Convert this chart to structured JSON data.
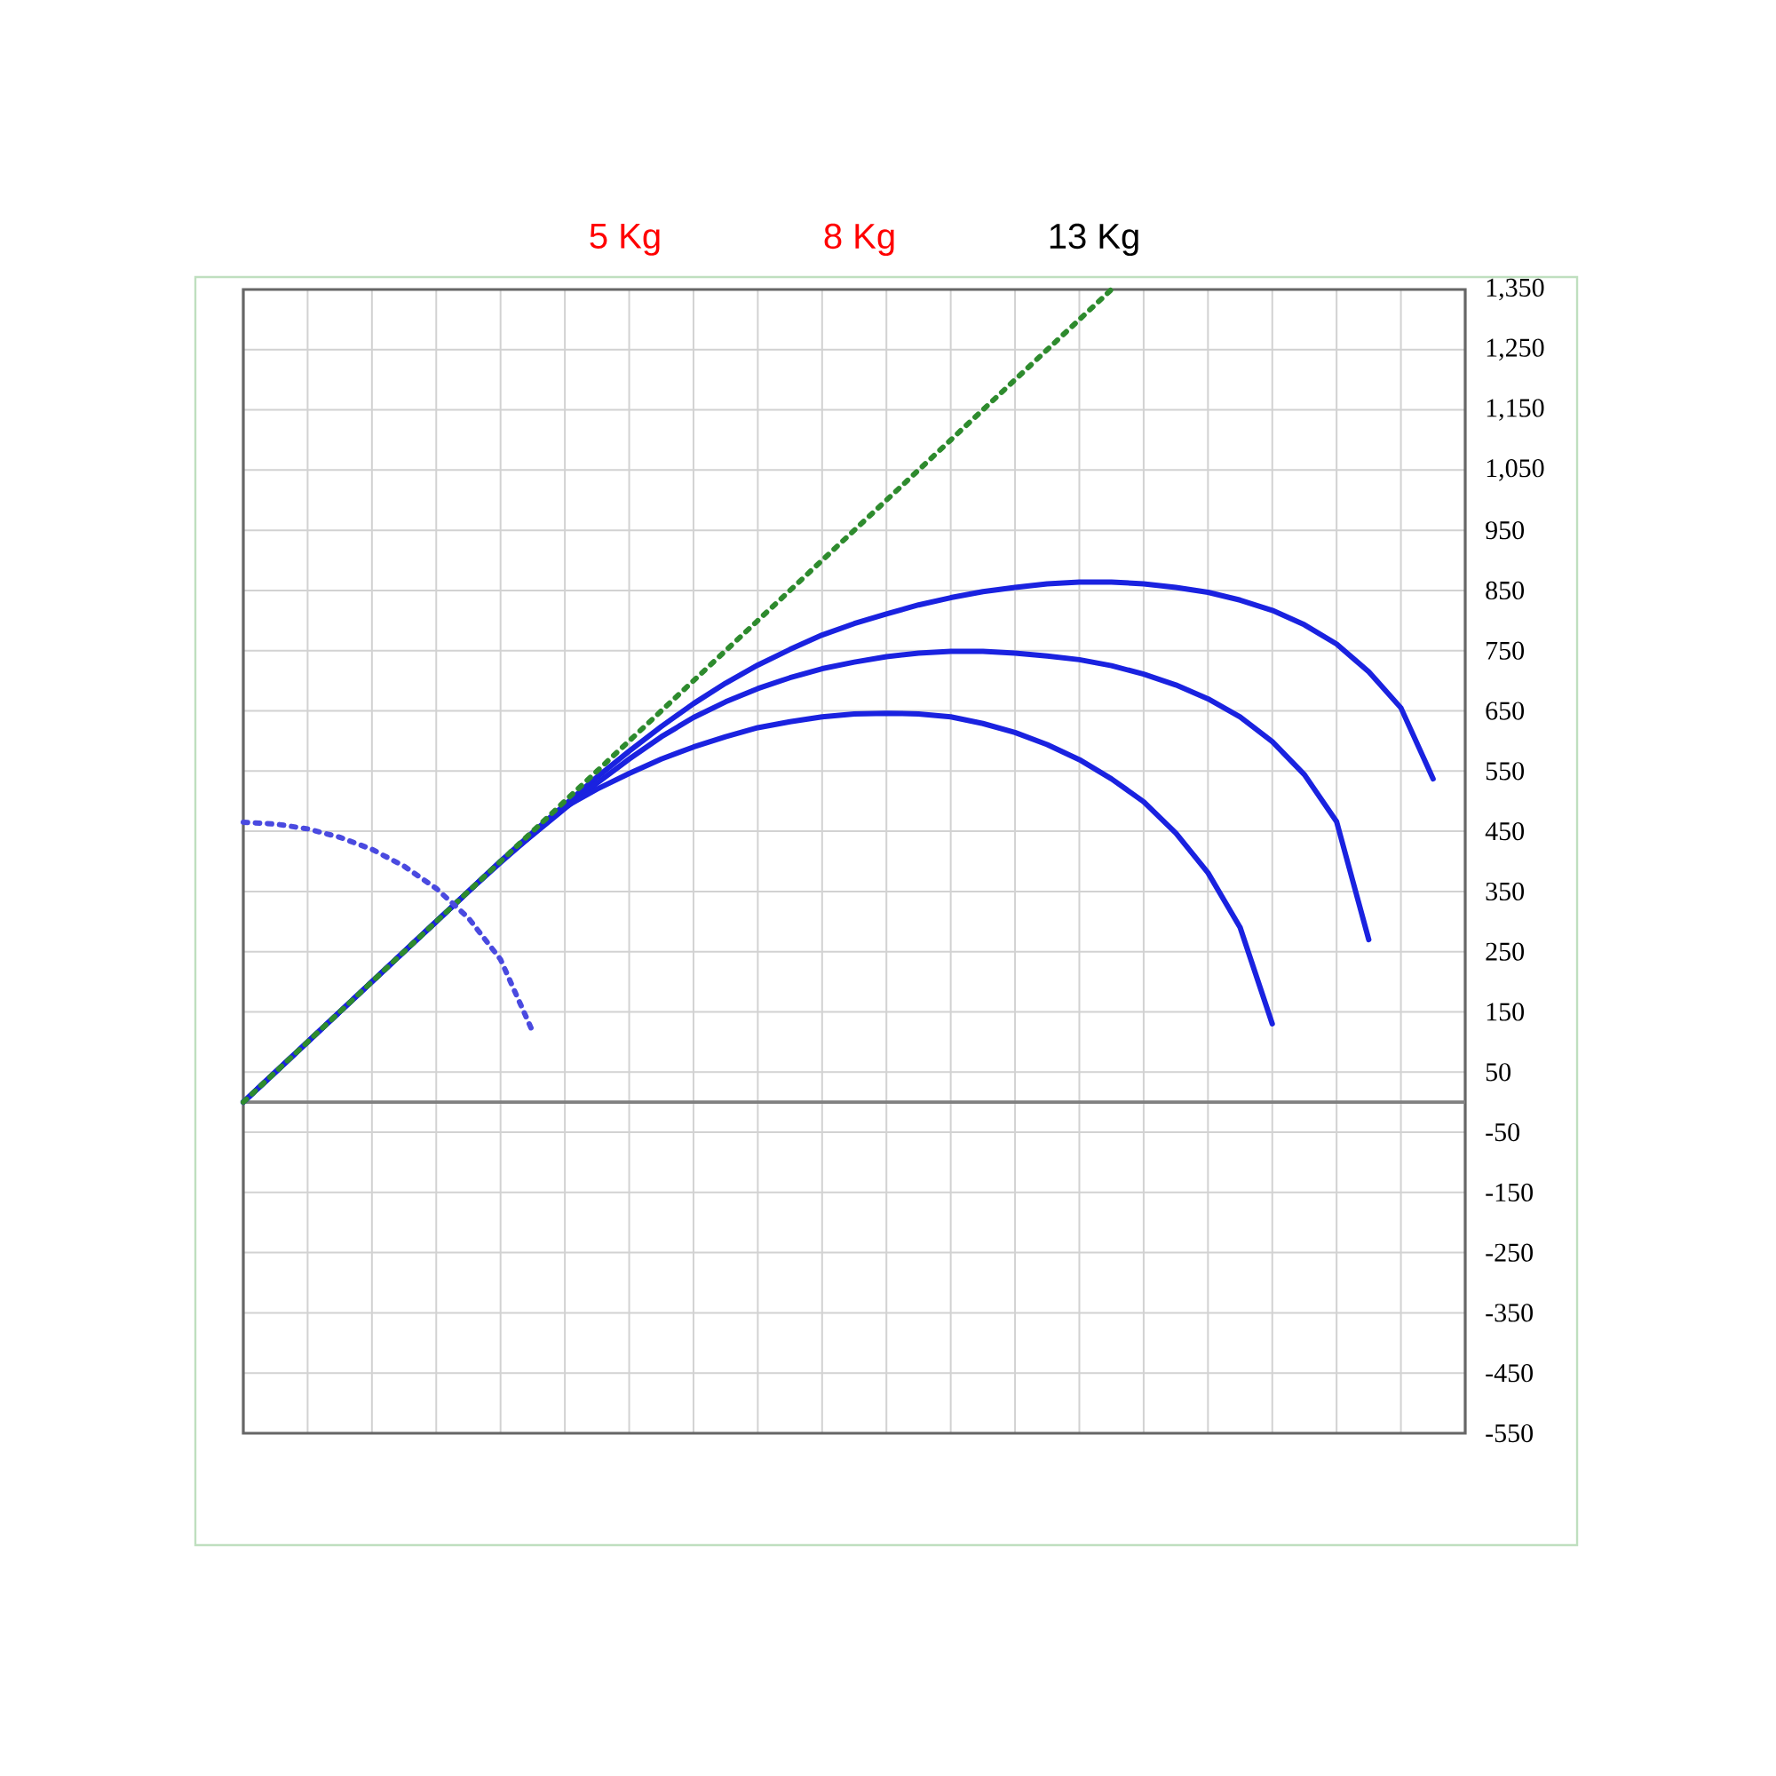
{
  "chart_data": {
    "type": "line",
    "annotations": [
      "5 Kg",
      "8 Kg",
      "13 Kg"
    ],
    "categories": [
      null,
      null,
      null,
      null,
      null,
      null,
      null,
      null,
      null,
      null,
      null,
      null,
      null,
      null,
      null,
      null,
      null,
      null,
      null,
      null,
      null,
      null,
      null,
      null,
      null,
      null,
      null,
      null,
      null,
      null,
      null,
      null,
      null,
      null,
      null,
      null,
      null,
      null,
      null
    ],
    "series": [
      {
        "color": "#1a22e0",
        "values": [
          0,
          50,
          100,
          150,
          200,
          250,
          300,
          350,
          400,
          448,
          494,
          540,
          583,
          624,
          662,
          696,
          726,
          752,
          776,
          795,
          811,
          826,
          838,
          848,
          855,
          861,
          864,
          864,
          861,
          855,
          847,
          834,
          817,
          793,
          761,
          715,
          655,
          537,
          null
        ]
      },
      {
        "color": "#1a22e0",
        "values": [
          0,
          50,
          100,
          150,
          200,
          250,
          300,
          350,
          400,
          444,
          488,
          530,
          570,
          607,
          639,
          665,
          687,
          705,
          720,
          731,
          740,
          746,
          749,
          749,
          746,
          741,
          735,
          725,
          711,
          693,
          670,
          640,
          599,
          544,
          466,
          270,
          null,
          null,
          null
        ]
      },
      {
        "color": "#1a22e0",
        "values": [
          0,
          50,
          100,
          150,
          200,
          250,
          300,
          350,
          398,
          445,
          490,
          520,
          546,
          570,
          590,
          607,
          622,
          632,
          640,
          645,
          646,
          645,
          640,
          629,
          614,
          594,
          569,
          537,
          499,
          447,
          381,
          290,
          130,
          null,
          null,
          null,
          null,
          null,
          null
        ]
      },
      {
        "color": "#2e8b2e",
        "line_style": "dotted",
        "values": [
          0,
          50,
          100,
          150,
          200,
          250,
          300,
          350,
          400,
          450,
          500,
          550,
          600,
          650,
          700,
          750,
          800,
          850,
          900,
          950,
          1000,
          1050,
          1100,
          1150,
          1200,
          1250,
          1300,
          1350,
          null,
          null,
          null,
          null,
          null,
          null,
          null,
          null,
          null,
          null,
          null
        ]
      },
      {
        "color": "#4a4ae0",
        "line_style": "dotted",
        "values": [
          465,
          462,
          454,
          440,
          420,
          392,
          355,
          306,
          237,
          117,
          null,
          null,
          null,
          null,
          null,
          null,
          null,
          null,
          null,
          null,
          null,
          null,
          null,
          null,
          null,
          null,
          null,
          null,
          null,
          null,
          null,
          null,
          null,
          null,
          null,
          null,
          null,
          null,
          null
        ]
      }
    ],
    "ylim": [
      -550,
      1350
    ],
    "yticks": [
      {
        "value": 1350,
        "label": "1,350"
      },
      {
        "value": 1250,
        "label": "1,250"
      },
      {
        "value": 1150,
        "label": "1,150"
      },
      {
        "value": 1050,
        "label": "1,050"
      },
      950,
      850,
      750,
      650,
      550,
      450,
      350,
      250,
      150,
      50,
      -50,
      -150,
      -250,
      -350,
      -450,
      -550
    ],
    "ref_lines": [
      {
        "axis": "y",
        "value": 0,
        "color": "#808080"
      }
    ],
    "grid": true,
    "marker": "none",
    "line_style": "solid"
  }
}
